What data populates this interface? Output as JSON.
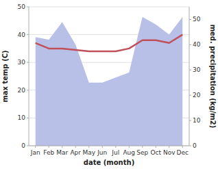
{
  "chart_data": {
    "type": "line",
    "categories": [
      "Jan",
      "Feb",
      "Mar",
      "Apr",
      "May",
      "Jun",
      "Jul",
      "Aug",
      "Sep",
      "Oct",
      "Nov",
      "Dec"
    ],
    "xlabel": "date (month)",
    "ylabel": "max temp (C)",
    "y2label": "med. precipitation (kg/m2)",
    "series": [
      {
        "type": "area",
        "axis": "y2",
        "color": "#b8c0e8",
        "values": [
          43,
          42,
          49,
          40,
          25,
          25,
          27,
          29,
          51,
          48,
          44,
          51
        ]
      },
      {
        "type": "line",
        "color": "#c0505a",
        "values": [
          37,
          35,
          35,
          34.5,
          34,
          34,
          34,
          35,
          38,
          38,
          37,
          40
        ]
      }
    ],
    "ylim": [
      0,
      50
    ],
    "yticks": [
      0,
      10,
      20,
      30,
      40,
      50
    ],
    "y2lim": [
      0,
      55
    ],
    "y2ticks": [
      0,
      10,
      20,
      30,
      40,
      50
    ],
    "grid": true
  }
}
